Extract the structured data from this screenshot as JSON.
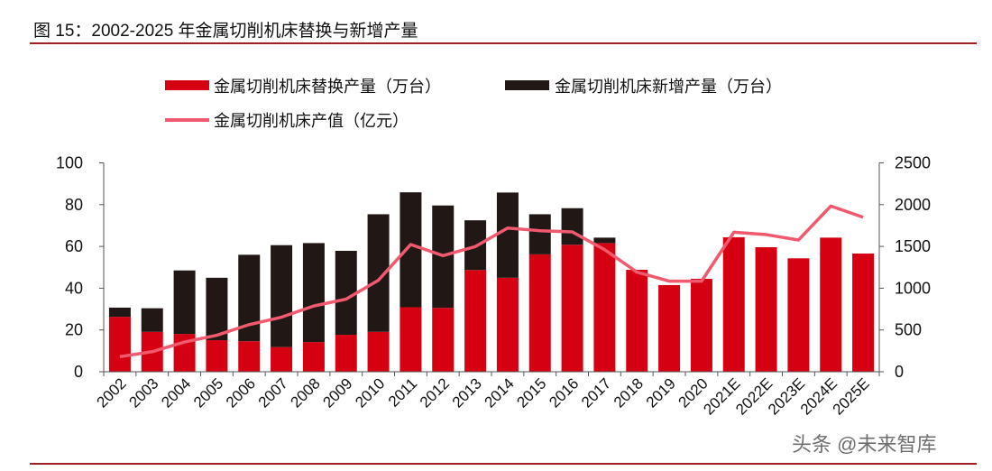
{
  "title": "图 15：2002-2025 年金属切削机床替换与新增产量",
  "watermark": "头条 @未来智库",
  "colors": {
    "replace": "#d50012",
    "new": "#211815",
    "value": "#f0596e",
    "rule": "#a31f24"
  },
  "chart_data": {
    "type": "bar",
    "stacked": true,
    "title": "2002-2025 年金属切削机床替换与新增产量",
    "categories": [
      "2002",
      "2003",
      "2004",
      "2005",
      "2006",
      "2007",
      "2008",
      "2009",
      "2010",
      "2011",
      "2012",
      "2013",
      "2014",
      "2015",
      "2016",
      "2017",
      "2018",
      "2019",
      "2020",
      "2021E",
      "2022E",
      "2023E",
      "2024E",
      "2025E"
    ],
    "series": [
      {
        "name": "金属切削机床替换产量（万台）",
        "type": "bar",
        "axis": "left",
        "values": [
          26.3,
          19.1,
          18.1,
          15.1,
          14.6,
          11.8,
          14.2,
          17.7,
          19.1,
          30.9,
          30.6,
          48.7,
          45.0,
          56.2,
          60.8,
          61.6,
          48.8,
          41.5,
          44.5,
          64.4,
          59.6,
          54.3,
          64.2,
          56.6
        ]
      },
      {
        "name": "金属切削机床新增产量（万台）",
        "type": "bar",
        "axis": "left",
        "values": [
          4.4,
          11.3,
          30.4,
          29.9,
          41.4,
          48.8,
          47.4,
          40.2,
          56.3,
          55.0,
          49.0,
          23.8,
          40.8,
          19.2,
          17.5,
          2.6,
          0,
          0,
          0,
          0,
          0,
          0,
          0,
          0
        ]
      },
      {
        "name": "金属切削机床产值（亿元）",
        "type": "line",
        "axis": "right",
        "values": [
          180,
          240,
          356,
          437,
          564,
          653,
          787,
          869,
          1095,
          1523,
          1390,
          1498,
          1720,
          1688,
          1674,
          1461,
          1192,
          1084,
          1084,
          1670,
          1641,
          1577,
          1983,
          1849
        ]
      }
    ],
    "y_left": {
      "range": [
        0,
        100
      ],
      "ticks": [
        0,
        20,
        40,
        60,
        80,
        100
      ]
    },
    "y_right": {
      "range": [
        0,
        2500
      ],
      "ticks": [
        0,
        500,
        1000,
        1500,
        2000,
        2500
      ]
    },
    "legend_placement": "top",
    "grid": false
  }
}
